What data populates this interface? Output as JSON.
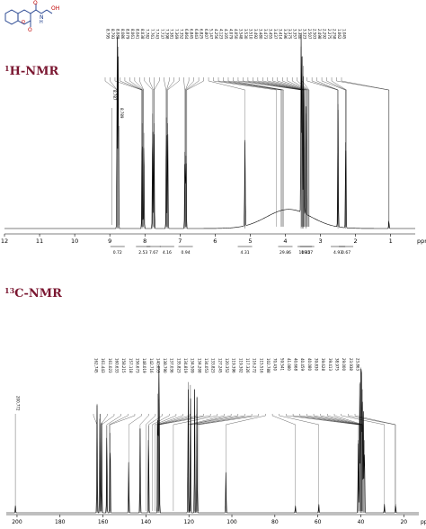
{
  "titles": {
    "h_mass": "1",
    "h_rest": "H-NMR",
    "c_mass": "13",
    "c_rest": "C-NMR"
  },
  "molecule": {
    "atoms": [
      "O",
      "O",
      "O",
      "N",
      "H",
      "OH"
    ]
  },
  "colors": {
    "title": "#7a1630",
    "spectrum": "#000000",
    "axis": "#000000"
  },
  "chart_data": [
    {
      "type": "line",
      "name": "1H NMR spectrum",
      "xlabel": "ppm",
      "x_reversed": true,
      "xlim": [
        12,
        0.3
      ],
      "ticks": [
        "12",
        "11",
        "10",
        "9",
        "8",
        "7",
        "6",
        "5",
        "4",
        "3",
        "2",
        "1"
      ],
      "axis_unit": "ppm",
      "peaks": [
        {
          "ppm": 8.79,
          "height": 1.0
        },
        {
          "ppm": 8.76,
          "height": 0.95
        },
        {
          "ppm": 8.08,
          "height": 0.55
        },
        {
          "ppm": 8.03,
          "height": 0.5
        },
        {
          "ppm": 7.78,
          "height": 0.6
        },
        {
          "ppm": 7.74,
          "height": 0.55
        },
        {
          "ppm": 7.39,
          "height": 0.58
        },
        {
          "ppm": 7.35,
          "height": 0.55
        },
        {
          "ppm": 6.86,
          "height": 0.4
        },
        {
          "ppm": 6.83,
          "height": 0.38
        },
        {
          "ppm": 5.15,
          "height": 0.45
        },
        {
          "ppm": 3.55,
          "height": 0.95
        },
        {
          "ppm": 3.52,
          "height": 0.9
        },
        {
          "ppm": 3.48,
          "height": 0.85
        },
        {
          "ppm": 3.41,
          "height": 0.6
        },
        {
          "ppm": 2.5,
          "height": 0.65
        },
        {
          "ppm": 2.28,
          "height": 0.45
        },
        {
          "ppm": 1.05,
          "height": 0.04
        }
      ],
      "hump": {
        "center": 3.9,
        "width": 0.9,
        "height": 0.1
      },
      "peak_labels": [
        "8.795",
        "8.793",
        "8.088",
        "8.086",
        "8.079",
        "8.061",
        "8.041",
        "8.038",
        "7.782",
        "7.761",
        "7.743",
        "7.737",
        "7.398",
        "7.381",
        "7.369",
        "7.352",
        "6.864",
        "6.845",
        "6.843",
        "6.825",
        "6.807",
        "5.147",
        "4.256",
        "4.123",
        "4.105",
        "4.079",
        "4.050",
        "3.548",
        "3.530",
        "3.510",
        "3.492",
        "3.480",
        "3.473",
        "3.455",
        "3.437",
        "3.414",
        "3.396",
        "3.375",
        "3.357",
        "3.340",
        "3.323",
        "2.507",
        "2.503",
        "2.498",
        "2.292",
        "2.275",
        "2.258",
        "1.062",
        "1.045"
      ],
      "left_labels": [
        "8.787",
        "8.789"
      ],
      "integrals": [
        {
          "ppm": 8.78,
          "value": "0.72"
        },
        {
          "ppm": 8.05,
          "value": "2.53"
        },
        {
          "ppm": 7.75,
          "value": "7.67"
        },
        {
          "ppm": 7.37,
          "value": "4.16"
        },
        {
          "ppm": 6.84,
          "value": "0.94"
        },
        {
          "ppm": 5.15,
          "value": "4.31"
        },
        {
          "ppm": 4.0,
          "value": "29.86"
        },
        {
          "ppm": 3.45,
          "value": "10.82"
        },
        {
          "ppm": 3.38,
          "value": "19.57"
        },
        {
          "ppm": 2.5,
          "value": "4.93"
        },
        {
          "ppm": 2.27,
          "value": "0.67"
        }
      ]
    },
    {
      "type": "line",
      "name": "13C NMR spectrum",
      "xlabel": "ppm",
      "x_reversed": true,
      "xlim": [
        205,
        13
      ],
      "ticks": [
        "200",
        "180",
        "160",
        "140",
        "120",
        "100",
        "80",
        "60",
        "40",
        "20"
      ],
      "axis_unit": "ppm",
      "peaks": [
        {
          "ppm": 200.77,
          "height": 0.05
        },
        {
          "ppm": 162.74,
          "height": 0.75
        },
        {
          "ppm": 161.44,
          "height": 0.68
        },
        {
          "ppm": 160.63,
          "height": 0.62
        },
        {
          "ppm": 158.21,
          "height": 0.6
        },
        {
          "ppm": 156.67,
          "height": 0.55
        },
        {
          "ppm": 148.02,
          "height": 0.35
        },
        {
          "ppm": 142.71,
          "height": 0.58
        },
        {
          "ppm": 138.79,
          "height": 0.6
        },
        {
          "ppm": 134.51,
          "height": 0.82
        },
        {
          "ppm": 134.05,
          "height": 0.78
        },
        {
          "ppm": 133.82,
          "height": 0.75
        },
        {
          "ppm": 120.35,
          "height": 0.9
        },
        {
          "ppm": 119.3,
          "height": 0.88
        },
        {
          "ppm": 117.32,
          "height": 0.85
        },
        {
          "ppm": 116.27,
          "height": 0.8
        },
        {
          "ppm": 102.79,
          "height": 0.28
        },
        {
          "ppm": 70.43,
          "height": 0.05
        },
        {
          "ppm": 59.54,
          "height": 0.06
        },
        {
          "ppm": 41.2,
          "height": 0.5
        },
        {
          "ppm": 40.5,
          "height": 0.9
        },
        {
          "ppm": 40.0,
          "height": 1.0
        },
        {
          "ppm": 39.7,
          "height": 0.95
        },
        {
          "ppm": 39.3,
          "height": 0.85
        },
        {
          "ppm": 38.8,
          "height": 0.7
        },
        {
          "ppm": 38.3,
          "height": 0.5
        },
        {
          "ppm": 29.0,
          "height": 0.06
        },
        {
          "ppm": 23.8,
          "height": 0.06
        }
      ],
      "peak_labels": [
        "162.745",
        "161.443",
        "161.023",
        "160.633",
        "158.215",
        "157.118",
        "156.673",
        "148.019",
        "142.716",
        "140.053",
        "138.790",
        "137.036",
        "135.823",
        "134.819",
        "134.509",
        "134.208",
        "134.053",
        "133.823",
        "127.245",
        "120.352",
        "119.396",
        "119.302",
        "117.326",
        "116.272",
        "115.516",
        "102.788",
        "70.430",
        "59.541",
        "41.080",
        "40.668",
        "40.459",
        "40.080",
        "39.830",
        "39.628",
        "39.413",
        "38.975",
        "29.000",
        "23.938",
        "23.863"
      ],
      "left_labels": [
        "200.772"
      ]
    }
  ]
}
